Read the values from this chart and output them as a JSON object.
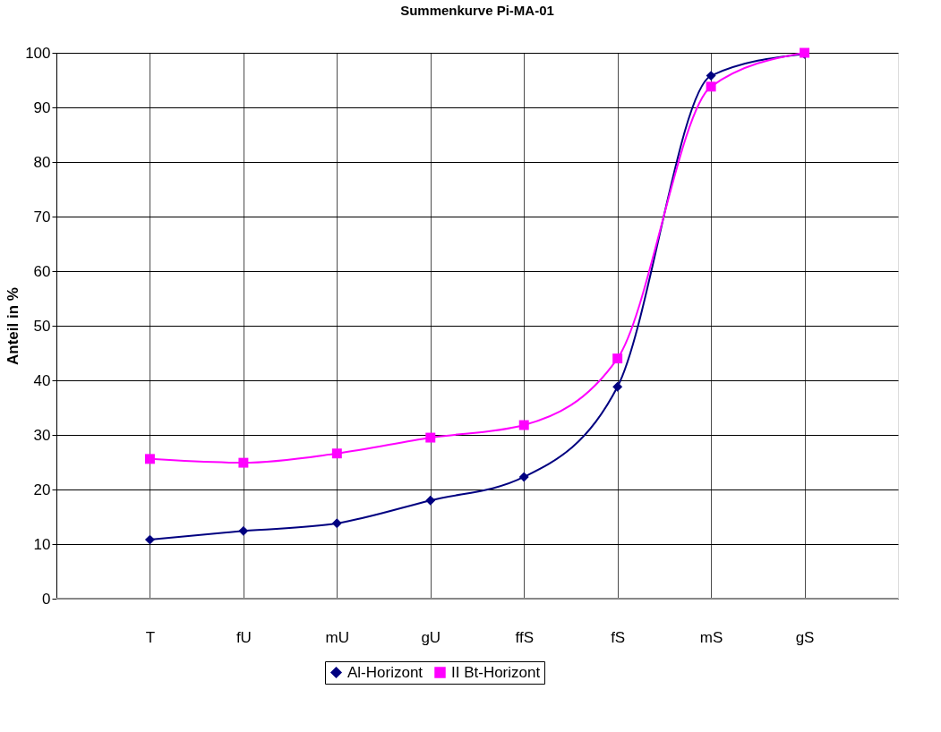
{
  "chart_data": {
    "type": "line",
    "title": "Summenkurve Pi-MA-01",
    "ylabel": "Anteil in %",
    "categories": [
      "T",
      "fU",
      "mU",
      "gU",
      "ffS",
      "fS",
      "mS",
      "gS"
    ],
    "series": [
      {
        "name": "Al-Horizont",
        "color": "#000080",
        "marker": "diamond",
        "values": [
          10.8,
          12.4,
          13.8,
          18.0,
          22.3,
          38.8,
          95.8,
          99.8
        ]
      },
      {
        "name": "II Bt-Horizont",
        "color": "#ff00ff",
        "marker": "square",
        "values": [
          25.6,
          24.9,
          26.6,
          29.5,
          31.8,
          44.0,
          93.8,
          100
        ]
      }
    ],
    "ylim": [
      0,
      100
    ],
    "yticks": [
      0,
      10,
      20,
      30,
      40,
      50,
      60,
      70,
      80,
      90,
      100
    ],
    "grid": true,
    "legend": "bottom",
    "line_style": "solid"
  }
}
